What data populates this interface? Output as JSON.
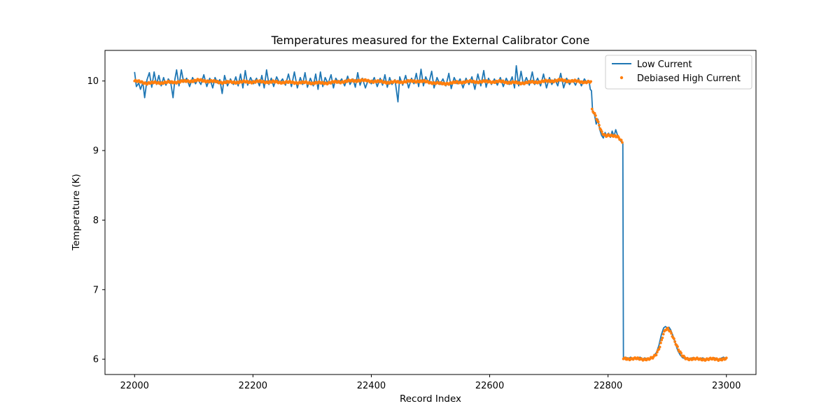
{
  "chart_data": {
    "type": "line",
    "title": "Temperatures measured for the External Calibrator Cone",
    "xlabel": "Record Index",
    "ylabel": "Temperature (K)",
    "xlim": [
      21950,
      23050
    ],
    "ylim": [
      5.78,
      10.44
    ],
    "xticks": [
      22000,
      22200,
      22400,
      22600,
      22800,
      23000
    ],
    "yticks": [
      6,
      7,
      8,
      9,
      10
    ],
    "grid": false,
    "legend_position": "top-right",
    "series": [
      {
        "name": "Low Current",
        "style": "line",
        "color": "#1f77b4",
        "points": [
          [
            22000,
            10.13
          ],
          [
            22003,
            9.92
          ],
          [
            22007,
            9.97
          ],
          [
            22010,
            9.88
          ],
          [
            22014,
            9.98
          ],
          [
            22017,
            9.76
          ],
          [
            22021,
            10.02
          ],
          [
            22025,
            10.12
          ],
          [
            22029,
            9.91
          ],
          [
            22033,
            10.13
          ],
          [
            22037,
            9.95
          ],
          [
            22041,
            10.08
          ],
          [
            22045,
            9.93
          ],
          [
            22049,
            10.05
          ],
          [
            22053,
            9.94
          ],
          [
            22057,
            10.03
          ],
          [
            22061,
            9.98
          ],
          [
            22065,
            9.76
          ],
          [
            22068,
            10.02
          ],
          [
            22071,
            10.16
          ],
          [
            22075,
            9.93
          ],
          [
            22079,
            10.16
          ],
          [
            22083,
            9.98
          ],
          [
            22088,
            10.04
          ],
          [
            22093,
            9.92
          ],
          [
            22098,
            10.05
          ],
          [
            22103,
            9.96
          ],
          [
            22107,
            10.02
          ],
          [
            22112,
            9.95
          ],
          [
            22117,
            10.09
          ],
          [
            22122,
            9.92
          ],
          [
            22127,
            10.04
          ],
          [
            22132,
            9.9
          ],
          [
            22136,
            10.05
          ],
          [
            22140,
            9.97
          ],
          [
            22144,
            10.02
          ],
          [
            22148,
            9.82
          ],
          [
            22152,
            10.08
          ],
          [
            22157,
            9.93
          ],
          [
            22162,
            10.03
          ],
          [
            22167,
            9.95
          ],
          [
            22171,
            10.06
          ],
          [
            22175,
            9.93
          ],
          [
            22179,
            10.1
          ],
          [
            22183,
            9.9
          ],
          [
            22187,
            10.15
          ],
          [
            22191,
            9.94
          ],
          [
            22196,
            10.05
          ],
          [
            22201,
            9.96
          ],
          [
            22206,
            10.04
          ],
          [
            22211,
            9.93
          ],
          [
            22215,
            10.08
          ],
          [
            22219,
            9.9
          ],
          [
            22223,
            10.16
          ],
          [
            22227,
            9.95
          ],
          [
            22231,
            10.04
          ],
          [
            22235,
            9.92
          ],
          [
            22240,
            10.06
          ],
          [
            22245,
            9.97
          ],
          [
            22250,
            10.03
          ],
          [
            22255,
            9.94
          ],
          [
            22260,
            10.1
          ],
          [
            22265,
            9.92
          ],
          [
            22270,
            10.13
          ],
          [
            22275,
            9.9
          ],
          [
            22280,
            10.05
          ],
          [
            22284,
            9.95
          ],
          [
            22288,
            10.12
          ],
          [
            22292,
            9.91
          ],
          [
            22297,
            10.04
          ],
          [
            22302,
            9.93
          ],
          [
            22306,
            10.1
          ],
          [
            22310,
            9.88
          ],
          [
            22314,
            10.13
          ],
          [
            22318,
            9.92
          ],
          [
            22322,
            10.05
          ],
          [
            22327,
            9.96
          ],
          [
            22332,
            10.09
          ],
          [
            22336,
            9.9
          ],
          [
            22340,
            10.04
          ],
          [
            22345,
            9.97
          ],
          [
            22350,
            10.03
          ],
          [
            22355,
            9.93
          ],
          [
            22360,
            10.07
          ],
          [
            22364,
            9.95
          ],
          [
            22369,
            10.03
          ],
          [
            22373,
            9.91
          ],
          [
            22377,
            10.12
          ],
          [
            22381,
            9.94
          ],
          [
            22385,
            10.04
          ],
          [
            22390,
            9.9
          ],
          [
            22395,
            10.02
          ],
          [
            22400,
            9.96
          ],
          [
            22405,
            10.05
          ],
          [
            22410,
            9.92
          ],
          [
            22415,
            10.04
          ],
          [
            22419,
            9.94
          ],
          [
            22423,
            10.09
          ],
          [
            22427,
            9.91
          ],
          [
            22431,
            10.05
          ],
          [
            22435,
            9.95
          ],
          [
            22440,
            10.02
          ],
          [
            22445,
            9.7
          ],
          [
            22448,
            10.06
          ],
          [
            22453,
            9.94
          ],
          [
            22458,
            10.08
          ],
          [
            22463,
            9.9
          ],
          [
            22468,
            10.04
          ],
          [
            22472,
            9.96
          ],
          [
            22476,
            10.11
          ],
          [
            22480,
            9.92
          ],
          [
            22484,
            10.17
          ],
          [
            22488,
            9.93
          ],
          [
            22492,
            10.06
          ],
          [
            22497,
            9.96
          ],
          [
            22502,
            10.14
          ],
          [
            22506,
            9.9
          ],
          [
            22511,
            10.05
          ],
          [
            22516,
            9.95
          ],
          [
            22521,
            10.03
          ],
          [
            22526,
            9.93
          ],
          [
            22531,
            10.11
          ],
          [
            22535,
            9.89
          ],
          [
            22540,
            10.05
          ],
          [
            22545,
            9.96
          ],
          [
            22550,
            10.03
          ],
          [
            22555,
            9.9
          ],
          [
            22560,
            10.04
          ],
          [
            22565,
            9.95
          ],
          [
            22570,
            10.06
          ],
          [
            22575,
            9.88
          ],
          [
            22580,
            10.1
          ],
          [
            22585,
            9.93
          ],
          [
            22590,
            10.15
          ],
          [
            22594,
            9.91
          ],
          [
            22598,
            10.04
          ],
          [
            22603,
            9.95
          ],
          [
            22608,
            10.03
          ],
          [
            22613,
            9.94
          ],
          [
            22618,
            10.05
          ],
          [
            22623,
            9.92
          ],
          [
            22628,
            10.04
          ],
          [
            22633,
            9.95
          ],
          [
            22638,
            10.06
          ],
          [
            22642,
            9.9
          ],
          [
            22645,
            10.22
          ],
          [
            22649,
            9.93
          ],
          [
            22653,
            10.14
          ],
          [
            22657,
            9.95
          ],
          [
            22662,
            10.05
          ],
          [
            22667,
            9.94
          ],
          [
            22672,
            10.13
          ],
          [
            22676,
            9.95
          ],
          [
            22681,
            10.04
          ],
          [
            22686,
            9.93
          ],
          [
            22691,
            10.1
          ],
          [
            22696,
            9.9
          ],
          [
            22701,
            10.05
          ],
          [
            22705,
            9.95
          ],
          [
            22710,
            10.03
          ],
          [
            22715,
            9.93
          ],
          [
            22720,
            10.11
          ],
          [
            22725,
            9.9
          ],
          [
            22730,
            10.04
          ],
          [
            22735,
            9.95
          ],
          [
            22740,
            10.02
          ],
          [
            22745,
            9.94
          ],
          [
            22750,
            10.04
          ],
          [
            22755,
            9.93
          ],
          [
            22760,
            10.03
          ],
          [
            22765,
            9.97
          ],
          [
            22768,
            10.0
          ],
          [
            22770,
            9.88
          ],
          [
            22772,
            9.86
          ],
          [
            22774,
            9.55
          ],
          [
            22777,
            9.52
          ],
          [
            22780,
            9.38
          ],
          [
            22783,
            9.45
          ],
          [
            22786,
            9.3
          ],
          [
            22789,
            9.22
          ],
          [
            22792,
            9.18
          ],
          [
            22795,
            9.26
          ],
          [
            22798,
            9.2
          ],
          [
            22801,
            9.25
          ],
          [
            22804,
            9.19
          ],
          [
            22807,
            9.28
          ],
          [
            22810,
            9.2
          ],
          [
            22813,
            9.3
          ],
          [
            22816,
            9.22
          ],
          [
            22819,
            9.16
          ],
          [
            22822,
            9.13
          ],
          [
            22825,
            9.1
          ],
          [
            22826,
            6.01
          ],
          [
            22830,
            6.03
          ],
          [
            22834,
            6.0
          ],
          [
            22838,
            6.03
          ],
          [
            22842,
            6.0
          ],
          [
            22846,
            6.02
          ],
          [
            22850,
            6.0
          ],
          [
            22854,
            6.03
          ],
          [
            22858,
            6.0
          ],
          [
            22862,
            6.02
          ],
          [
            22866,
            6.0
          ],
          [
            22870,
            6.01
          ],
          [
            22874,
            6.03
          ],
          [
            22878,
            6.05
          ],
          [
            22882,
            6.1
          ],
          [
            22886,
            6.2
          ],
          [
            22890,
            6.35
          ],
          [
            22894,
            6.45
          ],
          [
            22897,
            6.47
          ],
          [
            22900,
            6.45
          ],
          [
            22903,
            6.46
          ],
          [
            22906,
            6.42
          ],
          [
            22910,
            6.33
          ],
          [
            22914,
            6.22
          ],
          [
            22918,
            6.12
          ],
          [
            22922,
            6.06
          ],
          [
            22926,
            6.02
          ],
          [
            22930,
            6.01
          ],
          [
            22934,
            6.02
          ],
          [
            22938,
            6.0
          ],
          [
            22942,
            6.02
          ],
          [
            22946,
            6.0
          ],
          [
            22950,
            6.01
          ],
          [
            22955,
            6.0
          ],
          [
            22960,
            6.02
          ],
          [
            22965,
            6.0
          ],
          [
            22970,
            6.01
          ],
          [
            22975,
            6.0
          ],
          [
            22980,
            6.02
          ],
          [
            22985,
            6.0
          ],
          [
            22990,
            6.01
          ],
          [
            22995,
            6.03
          ],
          [
            23000,
            6.0
          ]
        ]
      },
      {
        "name": "Debiased High Current",
        "style": "scatter",
        "color": "#ff7f0e",
        "segments": [
          {
            "x_start": 22000,
            "x_end": 22772,
            "step": 1.5,
            "values": [
              [
                22000,
                10.0
              ],
              [
                22020,
                9.97
              ],
              [
                22060,
                9.98
              ],
              [
                22110,
                10.01
              ],
              [
                22150,
                9.98
              ],
              [
                22210,
                9.99
              ],
              [
                22260,
                9.98
              ],
              [
                22320,
                9.97
              ],
              [
                22380,
                10.01
              ],
              [
                22430,
                9.98
              ],
              [
                22480,
                10.0
              ],
              [
                22520,
                9.96
              ],
              [
                22560,
                9.99
              ],
              [
                22620,
                9.99
              ],
              [
                22650,
                9.97
              ],
              [
                22720,
                10.01
              ],
              [
                22772,
                9.98
              ]
            ]
          },
          {
            "x_start": 22773,
            "x_end": 22825,
            "step": 1.5,
            "values": [
              [
                22773,
                9.58
              ],
              [
                22778,
                9.52
              ],
              [
                22783,
                9.42
              ],
              [
                22790,
                9.25
              ],
              [
                22796,
                9.2
              ],
              [
                22802,
                9.22
              ],
              [
                22810,
                9.22
              ],
              [
                22816,
                9.2
              ],
              [
                22820,
                9.16
              ],
              [
                22825,
                9.1
              ]
            ]
          },
          {
            "x_start": 22826,
            "x_end": 23000,
            "step": 1.5,
            "values": [
              [
                22826,
                6.01
              ],
              [
                22870,
                6.0
              ],
              [
                22876,
                6.02
              ],
              [
                22882,
                6.08
              ],
              [
                22888,
                6.2
              ],
              [
                22893,
                6.35
              ],
              [
                22897,
                6.42
              ],
              [
                22901,
                6.43
              ],
              [
                22905,
                6.4
              ],
              [
                22910,
                6.32
              ],
              [
                22915,
                6.22
              ],
              [
                22920,
                6.12
              ],
              [
                22926,
                6.04
              ],
              [
                22932,
                6.01
              ],
              [
                22950,
                6.0
              ],
              [
                23000,
                6.0
              ]
            ]
          }
        ]
      }
    ]
  }
}
